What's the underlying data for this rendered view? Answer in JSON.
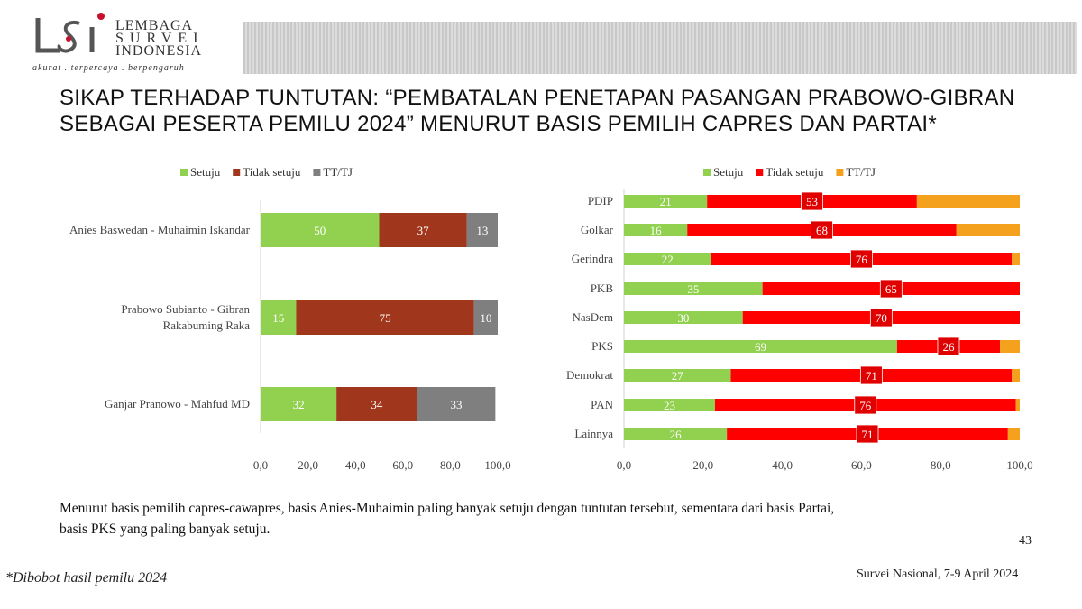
{
  "logo": {
    "line1": "LEMBAGA",
    "line2": "SURVEI",
    "line3": "INDONESIA",
    "tagline": "akurat . terpercaya . berpengaruh",
    "accent": "#c8102e"
  },
  "title": {
    "line1": "SIKAP TERHADAP TUNTUTAN: “PEMBATALAN PENETAPAN PASANGAN PRABOWO-GIBRAN",
    "line2": "SEBAGAI PESERTA PEMILU 2024” MENURUT BASIS PEMILIH CAPRES DAN PARTAI*"
  },
  "chart_data": [
    {
      "type": "bar",
      "orientation": "horizontal",
      "stacked": true,
      "categories": [
        "Anies Baswedan - Muhaimin Iskandar",
        "Prabowo Subianto - Gibran Rakabuming Raka",
        "Ganjar Pranowo - Mahfud MD"
      ],
      "series": [
        {
          "name": "Setuju",
          "color": "#92d050",
          "values": [
            50,
            15,
            32
          ]
        },
        {
          "name": "Tidak setuju",
          "color": "#a0361b",
          "values": [
            37,
            75,
            34
          ]
        },
        {
          "name": "TT/TJ",
          "color": "#7f7f7f",
          "values": [
            13,
            10,
            33
          ]
        }
      ],
      "xlim": [
        0,
        100
      ],
      "xticks": [
        "0,0",
        "20,0",
        "40,0",
        "60,0",
        "80,0",
        "100,0"
      ],
      "legend": "top"
    },
    {
      "type": "bar",
      "orientation": "horizontal",
      "stacked": true,
      "categories": [
        "PDIP",
        "Golkar",
        "Gerindra",
        "PKB",
        "NasDem",
        "PKS",
        "Demokrat",
        "PAN",
        "Lainnya"
      ],
      "series": [
        {
          "name": "Setuju",
          "color": "#92d050",
          "values": [
            21,
            16,
            22,
            35,
            30,
            69,
            27,
            23,
            26
          ]
        },
        {
          "name": "Tidak setuju",
          "color": "#ff0000",
          "values": [
            53,
            68,
            76,
            65,
            70,
            26,
            71,
            76,
            71
          ]
        },
        {
          "name": "TT/TJ",
          "color": "#f4a11d",
          "values": [
            26,
            16,
            2,
            0,
            0,
            6,
            2,
            1,
            3
          ]
        }
      ],
      "xlim": [
        0,
        100
      ],
      "xticks": [
        "0,0",
        "20,0",
        "40,0",
        "60,0",
        "80,0",
        "100,0"
      ],
      "legend": "top"
    }
  ],
  "note": {
    "line1": "Menurut basis pemilih capres-cawapres,  basis Anies-Muhaimin paling banyak setuju dengan tuntutan tersebut, sementara dari basis Partai,",
    "line2": "basis PKS yang paling banyak setuju."
  },
  "page_number": "43",
  "footnote": "*Dibobot hasil pemilu 2024",
  "source": "Survei Nasional, 7-9 April 2024"
}
